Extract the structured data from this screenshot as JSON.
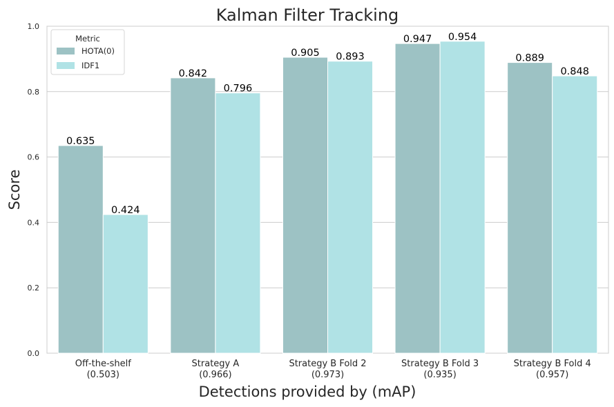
{
  "chart_data": {
    "type": "bar",
    "title": "Kalman Filter Tracking",
    "xlabel": "Detections provided by (mAP)",
    "ylabel": "Score",
    "ylim": [
      0,
      1.0
    ],
    "yticks": [
      "0.0",
      "0.2",
      "0.4",
      "0.6",
      "0.8",
      "1.0"
    ],
    "grid": "horizontal",
    "legend_title": "Metric",
    "legend_position": "top-left",
    "categories": [
      {
        "line1": "Off-the-shelf",
        "line2": "(0.503)"
      },
      {
        "line1": "Strategy A",
        "line2": "(0.966)"
      },
      {
        "line1": "Strategy B Fold 2",
        "line2": "(0.973)"
      },
      {
        "line1": "Strategy B Fold 3",
        "line2": "(0.935)"
      },
      {
        "line1": "Strategy B Fold 4",
        "line2": "(0.957)"
      }
    ],
    "series": [
      {
        "name": "HOTA(0)",
        "color": "#9dc2c4",
        "values": [
          0.635,
          0.842,
          0.905,
          0.947,
          0.889
        ],
        "labels": [
          "0.635",
          "0.842",
          "0.905",
          "0.947",
          "0.889"
        ]
      },
      {
        "name": "IDF1",
        "color": "#b0e2e5",
        "values": [
          0.424,
          0.796,
          0.893,
          0.954,
          0.848
        ],
        "labels": [
          "0.424",
          "0.796",
          "0.893",
          "0.954",
          "0.848"
        ]
      }
    ]
  }
}
